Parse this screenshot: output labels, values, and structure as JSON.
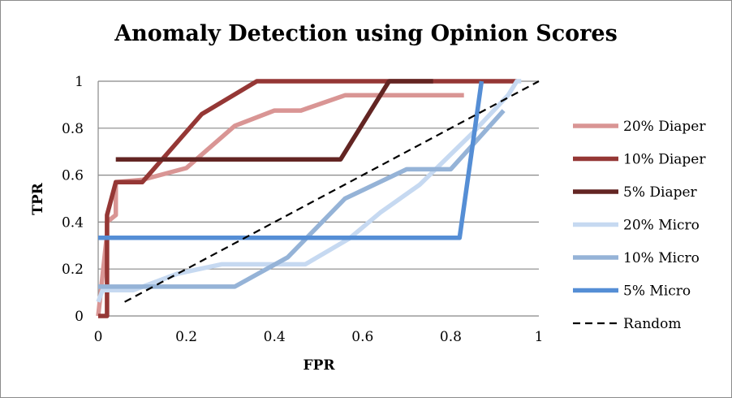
{
  "chart_data": {
    "type": "line",
    "title": "Anomaly Detection using Opinion Scores",
    "xlabel": "FPR",
    "ylabel": "TPR",
    "xlim": [
      0,
      1
    ],
    "ylim": [
      0,
      1
    ],
    "xticks": [
      "0",
      "0.2",
      "0.4",
      "0.6",
      "0.8",
      "1"
    ],
    "yticks": [
      "0",
      "0.2",
      "0.4",
      "0.6",
      "0.8",
      "1"
    ],
    "grid": "horizontal",
    "legend_position": "right",
    "series": [
      {
        "name": "20% Diaper",
        "color": "#d99594",
        "dash": false,
        "points": [
          [
            0.0,
            0.0
          ],
          [
            0.02,
            0.35
          ],
          [
            0.02,
            0.4
          ],
          [
            0.04,
            0.43
          ],
          [
            0.04,
            0.57
          ],
          [
            0.1,
            0.58
          ],
          [
            0.2,
            0.63
          ],
          [
            0.31,
            0.81
          ],
          [
            0.4,
            0.875
          ],
          [
            0.46,
            0.875
          ],
          [
            0.56,
            0.94
          ],
          [
            0.83,
            0.94
          ]
        ]
      },
      {
        "name": "10% Diaper",
        "color": "#953735",
        "dash": false,
        "points": [
          [
            0.0,
            0.0
          ],
          [
            0.02,
            0.0
          ],
          [
            0.02,
            0.43
          ],
          [
            0.04,
            0.57
          ],
          [
            0.1,
            0.57
          ],
          [
            0.235,
            0.86
          ],
          [
            0.36,
            1.0
          ],
          [
            0.95,
            1.0
          ]
        ]
      },
      {
        "name": "5% Diaper",
        "color": "#632523",
        "dash": false,
        "points": [
          [
            0.04,
            0.667
          ],
          [
            0.55,
            0.667
          ],
          [
            0.66,
            1.0
          ],
          [
            0.76,
            1.0
          ]
        ]
      },
      {
        "name": "20% Micro",
        "color": "#c6d9f1",
        "dash": false,
        "points": [
          [
            0.0,
            0.06
          ],
          [
            0.01,
            0.11
          ],
          [
            0.08,
            0.11
          ],
          [
            0.18,
            0.18
          ],
          [
            0.28,
            0.22
          ],
          [
            0.47,
            0.22
          ],
          [
            0.57,
            0.33
          ],
          [
            0.64,
            0.44
          ],
          [
            0.73,
            0.56
          ],
          [
            0.79,
            0.67
          ],
          [
            0.85,
            0.78
          ],
          [
            0.93,
            0.94
          ],
          [
            0.95,
            1.0
          ],
          [
            0.96,
            1.0
          ]
        ]
      },
      {
        "name": "10% Micro",
        "color": "#95b3d7",
        "dash": false,
        "points": [
          [
            0.0,
            0.125
          ],
          [
            0.31,
            0.125
          ],
          [
            0.43,
            0.25
          ],
          [
            0.56,
            0.5
          ],
          [
            0.7,
            0.625
          ],
          [
            0.8,
            0.625
          ],
          [
            0.86,
            0.75
          ],
          [
            0.92,
            0.875
          ]
        ]
      },
      {
        "name": "5% Micro",
        "color": "#558ed5",
        "dash": false,
        "points": [
          [
            0.0,
            0.333
          ],
          [
            0.82,
            0.333
          ],
          [
            0.87,
            1.0
          ]
        ]
      },
      {
        "name": "Random",
        "color": "#000000",
        "dash": true,
        "points": [
          [
            0.06,
            0.06
          ],
          [
            1.0,
            1.0
          ]
        ]
      }
    ]
  }
}
